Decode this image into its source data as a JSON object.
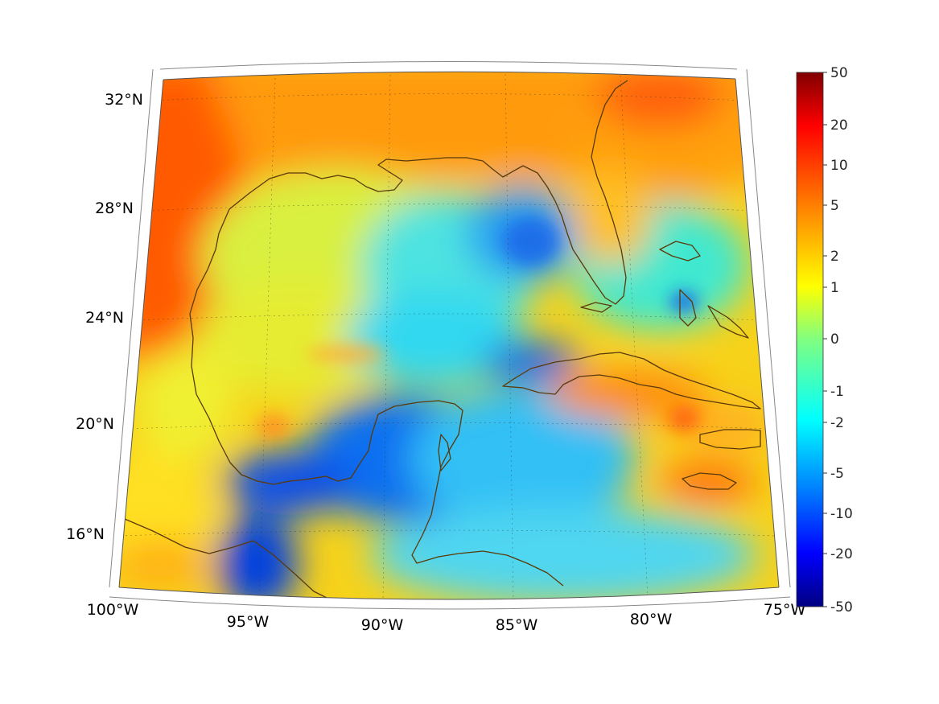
{
  "map": {
    "projection": "conic",
    "region": "Gulf of Mexico and Caribbean",
    "lon_range": [
      -100,
      -75
    ],
    "lat_range": [
      14,
      33
    ],
    "coastline_color": "#5a3a0a",
    "grid": "dotted",
    "colormap": "jet",
    "lon_labels": [
      "100°W",
      "95°W",
      "90°W",
      "85°W",
      "80°W",
      "75°W"
    ],
    "lat_labels": [
      "32°N",
      "28°N",
      "24°N",
      "20°N",
      "16°N"
    ]
  },
  "colorbar": {
    "tick_labels": [
      "50",
      "20",
      "10",
      "5",
      "2",
      "1",
      "0",
      "-1",
      "-2",
      "-5",
      "-10",
      "-20",
      "-50"
    ],
    "colors": {
      "top": "#800000",
      "red": "#ff0000",
      "orange": "#ff8000",
      "yellow": "#ffff00",
      "cyan": "#00ffff",
      "blue": "#0000ff",
      "bottom": "#000080"
    }
  }
}
